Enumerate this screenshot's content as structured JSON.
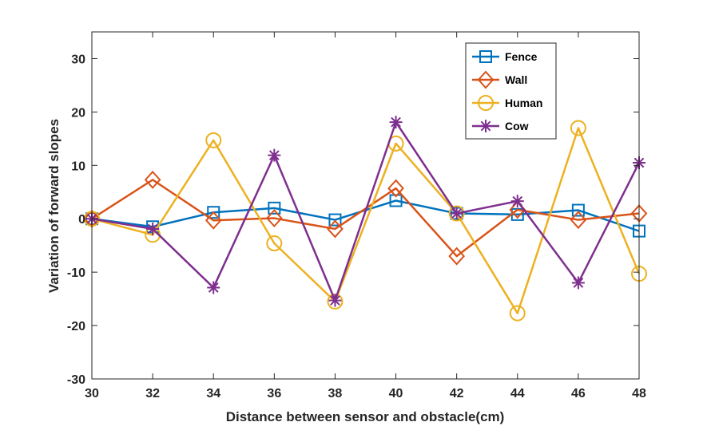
{
  "chart_data": {
    "type": "line",
    "title": "",
    "xlabel": "Distance between sensor and obstacle(cm)",
    "ylabel": "Variation of forward slopes",
    "x": [
      30,
      32,
      34,
      36,
      38,
      40,
      42,
      44,
      46,
      48
    ],
    "xlim": [
      30,
      48
    ],
    "ylim": [
      -30,
      35
    ],
    "xticks": [
      30,
      32,
      34,
      36,
      38,
      40,
      42,
      44,
      46,
      48
    ],
    "yticks": [
      -30,
      -20,
      -10,
      0,
      10,
      20,
      30
    ],
    "grid": false,
    "legend_position": "top-right",
    "series": [
      {
        "name": "Fence",
        "marker": "square",
        "color": "#0072BD",
        "values": [
          0,
          -1.5,
          1.2,
          2.0,
          -0.2,
          3.4,
          1.0,
          0.8,
          1.6,
          -2.3
        ]
      },
      {
        "name": "Wall",
        "marker": "diamond",
        "color": "#D95319",
        "values": [
          0,
          7.3,
          -0.3,
          0.1,
          -1.9,
          5.7,
          -7.0,
          1.7,
          -0.2,
          1.0
        ]
      },
      {
        "name": "Human",
        "marker": "circle",
        "color": "#EDB120",
        "values": [
          0,
          -3.0,
          14.7,
          -4.6,
          -15.5,
          14.1,
          1.0,
          -17.7,
          17.0,
          -10.3
        ]
      },
      {
        "name": "Cow",
        "marker": "asterisk",
        "color": "#7E2F8E",
        "values": [
          0,
          -1.9,
          -12.9,
          11.9,
          -15.3,
          18.1,
          1.0,
          3.3,
          -12.0,
          10.5
        ]
      }
    ]
  }
}
